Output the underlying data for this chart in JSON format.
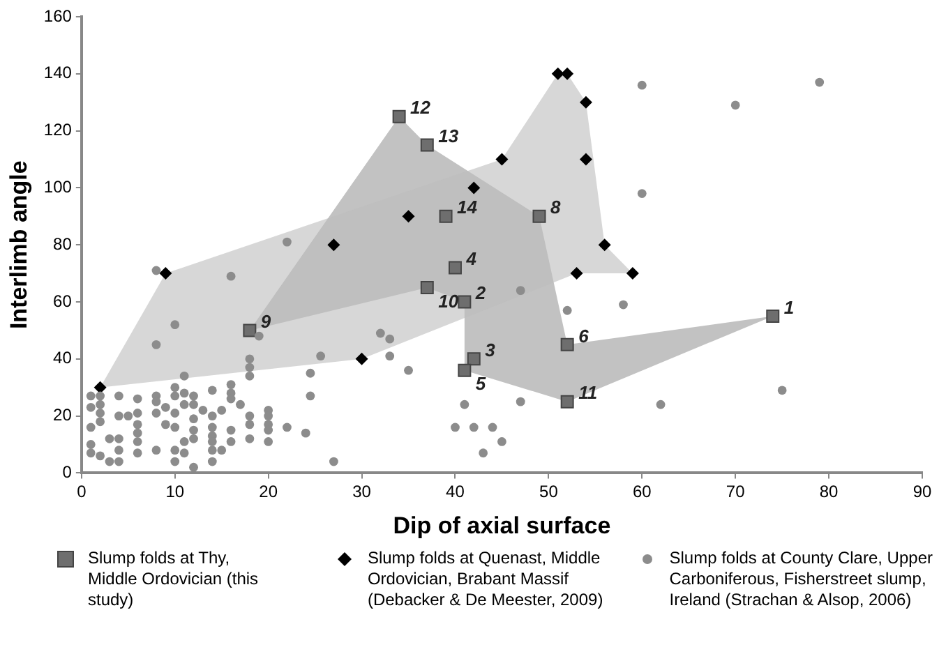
{
  "chart_data": {
    "type": "scatter",
    "xlabel": "Dip of axial surface",
    "ylabel": "Interlimb angle",
    "xlim": [
      0,
      90
    ],
    "xticks": [
      0,
      10,
      20,
      30,
      40,
      50,
      60,
      70,
      80,
      90
    ],
    "annotations": [
      {
        "text": "1",
        "x": 74,
        "y": 55
      },
      {
        "text": "2",
        "x": 41,
        "y": 60
      },
      {
        "text": "3",
        "x": 42,
        "y": 40
      },
      {
        "text": "4",
        "x": 40,
        "y": 72
      },
      {
        "text": "5",
        "x": 41,
        "y": 36
      },
      {
        "text": "6",
        "x": 52,
        "y": 45
      },
      {
        "text": "8",
        "x": 49,
        "y": 90
      },
      {
        "text": "9",
        "x": 18,
        "y": 50
      },
      {
        "text": "10",
        "x": 37,
        "y": 65
      },
      {
        "text": "11",
        "x": 52,
        "y": 25
      },
      {
        "text": "12",
        "x": 34,
        "y": 125
      },
      {
        "text": "13",
        "x": 37,
        "y": 115
      },
      {
        "text": "14",
        "x": 39,
        "y": 90
      }
    ],
    "ylim": [
      0,
      160
    ],
    "yticks": [
      0,
      20,
      40,
      60,
      80,
      100,
      120,
      140,
      160
    ],
    "grid": false,
    "legend": "bottom",
    "series": [
      {
        "type": "area",
        "color": "#bdbdbd",
        "x": [
          2,
          9,
          45,
          51,
          52,
          54,
          56,
          59,
          53,
          30,
          2
        ],
        "values": [
          30,
          70,
          110,
          140,
          140,
          130,
          80,
          70,
          70,
          40,
          30
        ]
      },
      {
        "type": "area",
        "color": "#9a9a9a",
        "x": [
          34,
          37,
          49,
          52,
          74,
          52,
          41,
          41,
          37,
          18,
          34
        ],
        "values": [
          125,
          115,
          90,
          45,
          55,
          25,
          36,
          60,
          65,
          50,
          125
        ]
      },
      {
        "name": "Slump folds at County Clare, Upper Carboniferous, Fisherstreet slump, Ireland (Strachan & Alsop, 2006)",
        "marker": "circle",
        "color": "#8c8c8c",
        "x": [
          8,
          22,
          16,
          10,
          8,
          19,
          18,
          18,
          18,
          25.6,
          24.5,
          24.5,
          32,
          33,
          33,
          35,
          41,
          40,
          42,
          44,
          43,
          45,
          27,
          22,
          20,
          20,
          20,
          20,
          20,
          18,
          18,
          18,
          24,
          1,
          1,
          1,
          1,
          1,
          2,
          2,
          2,
          2,
          2,
          3,
          3,
          4,
          4,
          4,
          4,
          4,
          5,
          6,
          6,
          6,
          6,
          6,
          6,
          8,
          8,
          8,
          8,
          9,
          9,
          10,
          10,
          10,
          10,
          10,
          10,
          11,
          11,
          11,
          12,
          12,
          13,
          12,
          12,
          11,
          11,
          12,
          12,
          14,
          14,
          14,
          14,
          14,
          14,
          14,
          15,
          15,
          16,
          16,
          16,
          17,
          16,
          16,
          47,
          52,
          58,
          47,
          62,
          75,
          60,
          70,
          79,
          60
        ],
        "values": [
          71,
          81,
          69,
          52,
          45,
          48,
          40,
          37,
          34,
          41,
          35,
          27,
          49,
          47,
          41,
          36,
          24,
          16,
          16,
          16,
          7,
          11,
          4,
          16,
          22,
          20,
          17,
          15,
          11,
          20,
          17,
          12,
          14,
          27,
          23,
          16,
          10,
          7,
          27,
          24,
          21,
          18,
          6,
          12,
          4,
          27,
          20,
          12,
          8,
          4,
          20,
          7,
          11,
          26,
          21,
          17,
          14,
          27,
          25,
          21,
          8,
          23,
          17,
          30,
          27,
          21,
          16,
          8,
          4,
          34,
          28,
          24,
          27,
          24,
          22,
          19,
          15,
          11,
          7,
          12,
          2,
          29,
          20,
          16,
          13,
          11,
          8,
          4,
          22,
          8,
          31,
          28,
          26,
          24,
          15,
          11,
          64,
          57,
          59,
          25,
          24,
          29,
          136,
          129,
          137,
          98
        ]
      },
      {
        "name": "Slump folds at Quenast, Middle Ordovician, Brabant Massif (Debacker & De Meester, 2009)",
        "marker": "diamond",
        "color": "#000000",
        "x": [
          2,
          9,
          27,
          30,
          35,
          42,
          45,
          51,
          52,
          54,
          54,
          56,
          53,
          59
        ],
        "values": [
          30,
          70,
          80,
          40,
          90,
          100,
          110,
          140,
          140,
          130,
          110,
          80,
          70,
          70
        ]
      },
      {
        "name": "Slump folds at Thy, Middle Ordovician (this study)",
        "marker": "square",
        "color": "#6e6e6e",
        "x": [
          74,
          41,
          42,
          40,
          41,
          52,
          49,
          18,
          37,
          52,
          34,
          37,
          39
        ],
        "values": [
          55,
          60,
          40,
          72,
          36,
          45,
          90,
          50,
          65,
          25,
          125,
          115,
          90
        ]
      }
    ]
  }
}
